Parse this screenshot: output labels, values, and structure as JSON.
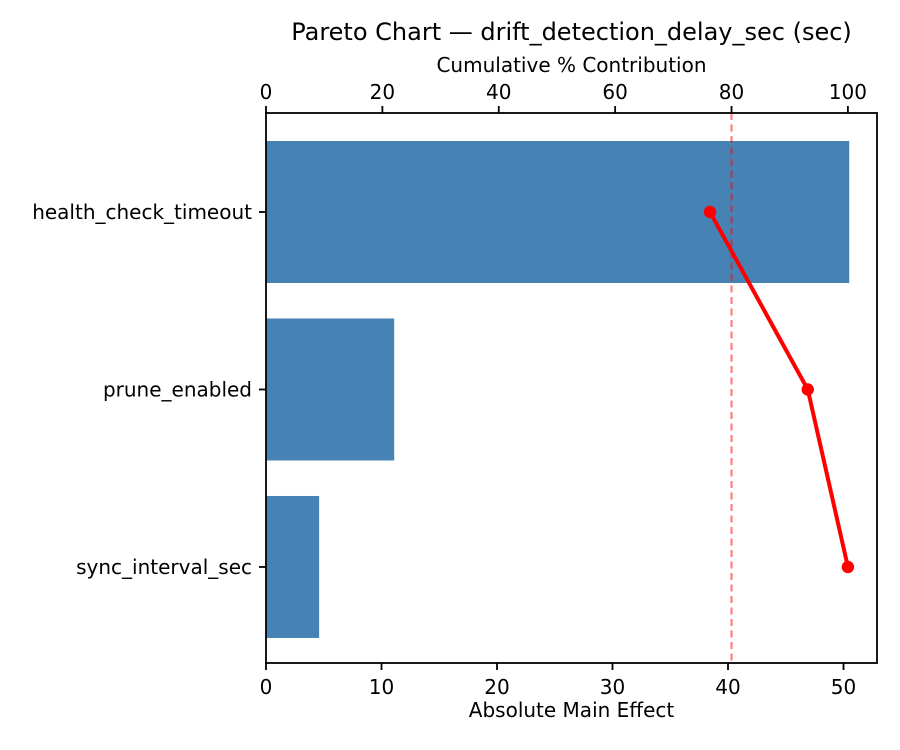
{
  "chart_data": {
    "type": "bar",
    "subtype": "pareto-horizontal-bar-with-cumulative-line",
    "title": "Pareto Chart — drift_detection_delay_sec (sec)",
    "categories": [
      "health_check_timeout",
      "prune_enabled",
      "sync_interval_sec"
    ],
    "series": [
      {
        "name": "Absolute Main Effect",
        "type": "bar",
        "values": [
          50.5,
          11.1,
          4.6
        ]
      },
      {
        "name": "Cumulative % Contribution",
        "type": "line",
        "values": [
          76.3,
          93.1,
          100.0
        ]
      }
    ],
    "bottom_axis": {
      "label": "Absolute Main Effect",
      "ticks": [
        0,
        10,
        20,
        30,
        40,
        50
      ],
      "range": [
        0,
        52.9
      ]
    },
    "top_axis": {
      "label": "Cumulative % Contribution",
      "ticks": [
        0,
        20,
        40,
        60,
        80,
        100
      ],
      "range": [
        0,
        105
      ]
    },
    "reference_line": {
      "value": 80,
      "axis": "top",
      "style": "dashed"
    },
    "grid": false,
    "legend": "none",
    "colors": {
      "bar": "#4682B4",
      "line": "#FF0000",
      "reference": "rgba(255,0,0,0.5)",
      "axis": "#000000",
      "background": "#FFFFFF"
    }
  }
}
